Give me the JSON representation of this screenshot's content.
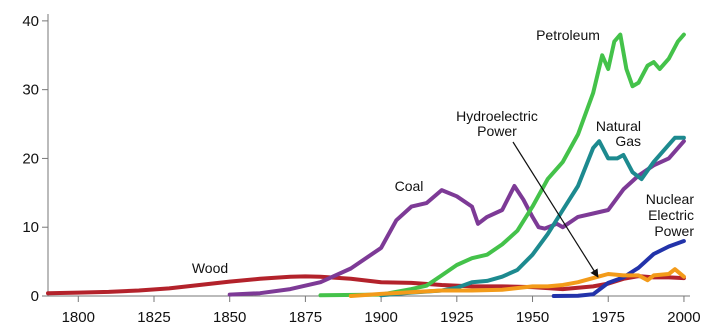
{
  "chart_data": {
    "type": "line",
    "title": "",
    "xlabel": "",
    "ylabel": "",
    "xlim": [
      1790,
      2002
    ],
    "ylim": [
      0,
      41
    ],
    "x_ticks": [
      1800,
      1825,
      1850,
      1875,
      1900,
      1925,
      1950,
      1975,
      2000
    ],
    "y_ticks": [
      0,
      10,
      20,
      30,
      40
    ],
    "grid": false,
    "legend": "none",
    "series": [
      {
        "name": "Wood",
        "color": "#b3222b",
        "points": [
          [
            1790,
            0.4
          ],
          [
            1800,
            0.5
          ],
          [
            1810,
            0.6
          ],
          [
            1820,
            0.8
          ],
          [
            1830,
            1.1
          ],
          [
            1840,
            1.6
          ],
          [
            1850,
            2.1
          ],
          [
            1860,
            2.5
          ],
          [
            1870,
            2.8
          ],
          [
            1875,
            2.85
          ],
          [
            1880,
            2.8
          ],
          [
            1890,
            2.5
          ],
          [
            1900,
            2.0
          ],
          [
            1910,
            1.9
          ],
          [
            1920,
            1.6
          ],
          [
            1930,
            1.4
          ],
          [
            1940,
            1.4
          ],
          [
            1950,
            1.3
          ],
          [
            1960,
            1.0
          ],
          [
            1970,
            1.4
          ],
          [
            1975,
            1.8
          ],
          [
            1980,
            2.5
          ],
          [
            1985,
            2.9
          ],
          [
            1990,
            2.7
          ],
          [
            1995,
            2.7
          ],
          [
            2000,
            2.6
          ]
        ]
      },
      {
        "name": "Coal",
        "color": "#7d3a96",
        "points": [
          [
            1850,
            0.2
          ],
          [
            1860,
            0.4
          ],
          [
            1870,
            1.0
          ],
          [
            1880,
            2.0
          ],
          [
            1890,
            4.0
          ],
          [
            1900,
            7.0
          ],
          [
            1905,
            11.0
          ],
          [
            1910,
            13.0
          ],
          [
            1915,
            13.5
          ],
          [
            1920,
            15.4
          ],
          [
            1925,
            14.5
          ],
          [
            1930,
            13.0
          ],
          [
            1932,
            10.5
          ],
          [
            1935,
            11.5
          ],
          [
            1940,
            12.5
          ],
          [
            1944,
            16.0
          ],
          [
            1947,
            14.0
          ],
          [
            1950,
            11.5
          ],
          [
            1952,
            10.0
          ],
          [
            1954,
            9.8
          ],
          [
            1958,
            10.5
          ],
          [
            1960,
            10.0
          ],
          [
            1965,
            11.5
          ],
          [
            1970,
            12.0
          ],
          [
            1975,
            12.5
          ],
          [
            1980,
            15.5
          ],
          [
            1985,
            17.5
          ],
          [
            1990,
            19.0
          ],
          [
            1995,
            20.0
          ],
          [
            2000,
            22.5
          ]
        ]
      },
      {
        "name": "Petroleum",
        "color": "#44c24a",
        "points": [
          [
            1880,
            0.1
          ],
          [
            1900,
            0.2
          ],
          [
            1910,
            1.0
          ],
          [
            1915,
            1.5
          ],
          [
            1920,
            3.0
          ],
          [
            1925,
            4.5
          ],
          [
            1930,
            5.5
          ],
          [
            1935,
            6.0
          ],
          [
            1940,
            7.5
          ],
          [
            1945,
            9.5
          ],
          [
            1950,
            13.0
          ],
          [
            1955,
            17.0
          ],
          [
            1960,
            19.5
          ],
          [
            1965,
            23.5
          ],
          [
            1970,
            29.5
          ],
          [
            1973,
            35.0
          ],
          [
            1975,
            33.0
          ],
          [
            1977,
            37.0
          ],
          [
            1979,
            38.0
          ],
          [
            1981,
            33.0
          ],
          [
            1983,
            30.5
          ],
          [
            1985,
            31.0
          ],
          [
            1988,
            33.5
          ],
          [
            1990,
            34.0
          ],
          [
            1992,
            33.0
          ],
          [
            1995,
            34.5
          ],
          [
            1998,
            37.0
          ],
          [
            2000,
            38.0
          ]
        ]
      },
      {
        "name": "Natural Gas",
        "color": "#1d8a8f",
        "points": [
          [
            1900,
            0.1
          ],
          [
            1910,
            0.5
          ],
          [
            1920,
            0.8
          ],
          [
            1925,
            1.2
          ],
          [
            1930,
            2.0
          ],
          [
            1935,
            2.2
          ],
          [
            1940,
            2.8
          ],
          [
            1945,
            3.8
          ],
          [
            1950,
            6.0
          ],
          [
            1955,
            9.0
          ],
          [
            1960,
            12.5
          ],
          [
            1965,
            16.0
          ],
          [
            1970,
            21.5
          ],
          [
            1972,
            22.5
          ],
          [
            1975,
            20.0
          ],
          [
            1978,
            20.0
          ],
          [
            1980,
            20.5
          ],
          [
            1983,
            18.0
          ],
          [
            1986,
            17.0
          ],
          [
            1990,
            19.5
          ],
          [
            1995,
            22.0
          ],
          [
            1997,
            23.0
          ],
          [
            2000,
            23.0
          ]
        ]
      },
      {
        "name": "Nuclear Electric Power",
        "color": "#2233aa",
        "points": [
          [
            1957,
            0.0
          ],
          [
            1965,
            0.05
          ],
          [
            1970,
            0.25
          ],
          [
            1975,
            1.9
          ],
          [
            1980,
            2.7
          ],
          [
            1985,
            4.1
          ],
          [
            1990,
            6.1
          ],
          [
            1995,
            7.2
          ],
          [
            2000,
            8.0
          ]
        ]
      },
      {
        "name": "Hydroelectric Power",
        "color": "#f39b1a",
        "points": [
          [
            1890,
            0.0
          ],
          [
            1900,
            0.3
          ],
          [
            1920,
            0.8
          ],
          [
            1930,
            0.8
          ],
          [
            1940,
            0.9
          ],
          [
            1950,
            1.4
          ],
          [
            1955,
            1.4
          ],
          [
            1960,
            1.6
          ],
          [
            1965,
            2.0
          ],
          [
            1970,
            2.6
          ],
          [
            1975,
            3.2
          ],
          [
            1980,
            3.0
          ],
          [
            1985,
            3.0
          ],
          [
            1988,
            2.3
          ],
          [
            1990,
            3.0
          ],
          [
            1995,
            3.2
          ],
          [
            1997,
            3.9
          ],
          [
            2000,
            2.8
          ]
        ]
      }
    ],
    "annotations": [
      {
        "id": "petroleum",
        "lines": [
          "Petroleum"
        ]
      },
      {
        "id": "natural-gas",
        "lines": [
          "Natural",
          "Gas"
        ]
      },
      {
        "id": "hydro",
        "lines": [
          "Hydroelectric",
          "Power"
        ]
      },
      {
        "id": "coal",
        "lines": [
          "Coal"
        ]
      },
      {
        "id": "nuclear",
        "lines": [
          "Nuclear",
          "Electric",
          "Power"
        ]
      },
      {
        "id": "wood",
        "lines": [
          "Wood"
        ]
      }
    ]
  }
}
